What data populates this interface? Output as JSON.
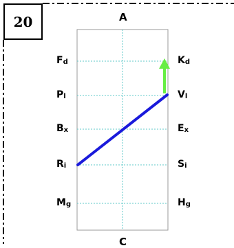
{
  "problem": {
    "number": "20"
  },
  "axis_labels": {
    "top": "A",
    "bottom": "C"
  },
  "left_labels": [
    {
      "main": "F",
      "sub": "d"
    },
    {
      "main": "P",
      "sub": "l"
    },
    {
      "main": "B",
      "sub": "x"
    },
    {
      "main": "R",
      "sub": "i"
    },
    {
      "main": "M",
      "sub": "g"
    }
  ],
  "right_labels": [
    {
      "main": "K",
      "sub": "d"
    },
    {
      "main": "V",
      "sub": "l"
    },
    {
      "main": "E",
      "sub": "x"
    },
    {
      "main": "S",
      "sub": "i"
    },
    {
      "main": "H",
      "sub": "g"
    }
  ],
  "colors": {
    "segment": "#1a1adb",
    "arrow": "#66ee44",
    "grid": "#5fc9c9",
    "frame_border": "#999999",
    "dash_border": "#000000"
  }
}
